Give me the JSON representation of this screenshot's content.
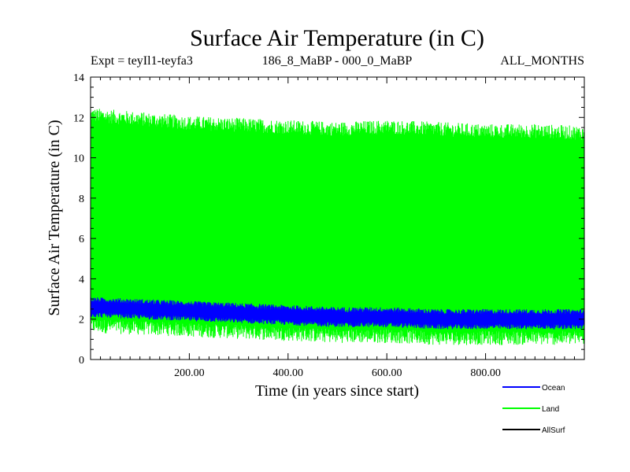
{
  "chart_data": {
    "type": "line",
    "title": "Surface Air Temperature (in C)",
    "subtitle_left": "Expt = teyIl1-teyfa3",
    "subtitle_center": "186_8_MaBP - 000_0_MaBP",
    "subtitle_right": "ALL_MONTHS",
    "xlabel": "Time (in years since start)",
    "ylabel": "Surface Air Temperature (in C)",
    "xlim": [
      0,
      1000
    ],
    "ylim": [
      0,
      14
    ],
    "x_ticks": [
      200,
      400,
      600,
      800
    ],
    "x_tick_labels": [
      "200.00",
      "400.00",
      "600.00",
      "800.00"
    ],
    "y_ticks": [
      0,
      2,
      4,
      6,
      8,
      10,
      12,
      14
    ],
    "y_tick_labels": [
      "0",
      "2",
      "4",
      "6",
      "8",
      "10",
      "12",
      "14"
    ],
    "series": [
      {
        "name": "Land",
        "color": "#00ff00",
        "description_values": {
          "x": [
            0,
            100,
            200,
            300,
            400,
            500,
            600,
            700,
            800,
            900,
            1000
          ],
          "upper": [
            12.2,
            12.0,
            11.8,
            11.7,
            11.6,
            11.5,
            11.6,
            11.5,
            11.4,
            11.4,
            11.3
          ],
          "lower": [
            1.6,
            1.5,
            1.4,
            1.3,
            1.2,
            1.1,
            1.1,
            1.0,
            1.0,
            1.0,
            1.0
          ]
        }
      },
      {
        "name": "Ocean",
        "color": "#0000ff",
        "description_values": {
          "x": [
            0,
            100,
            200,
            300,
            400,
            500,
            600,
            700,
            800,
            900,
            1000
          ],
          "upper": [
            3.0,
            2.9,
            2.8,
            2.7,
            2.6,
            2.5,
            2.5,
            2.4,
            2.4,
            2.4,
            2.4
          ],
          "lower": [
            2.2,
            2.1,
            2.0,
            1.9,
            1.8,
            1.7,
            1.7,
            1.6,
            1.6,
            1.6,
            1.6
          ]
        }
      },
      {
        "name": "AllSurf",
        "color": "#000000",
        "description_values": {
          "x": [],
          "upper": [],
          "lower": []
        }
      }
    ],
    "legend": [
      {
        "label": "Ocean",
        "color": "#0000ff"
      },
      {
        "label": "Land",
        "color": "#00ff00"
      },
      {
        "label": "AllSurf",
        "color": "#000000"
      }
    ]
  }
}
